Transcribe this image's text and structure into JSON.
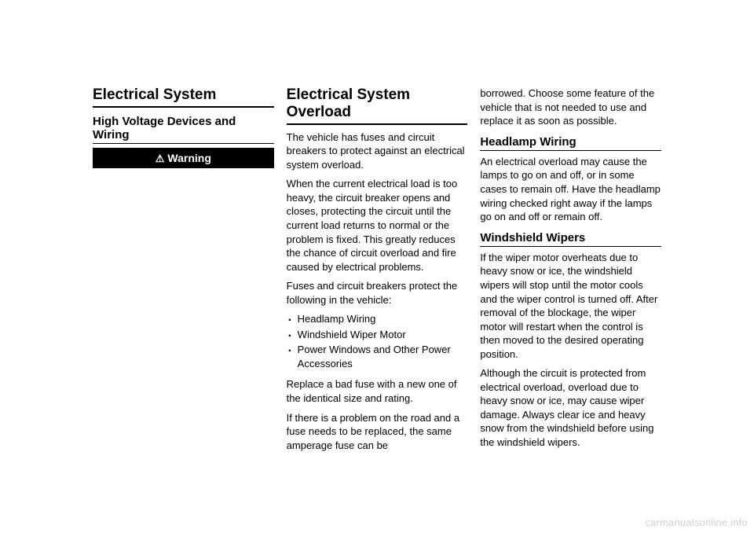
{
  "col1": {
    "heading": "Electrical System",
    "subheading": "High Voltage Devices and Wiring",
    "warning_label": "Warning"
  },
  "col2": {
    "heading": "Electrical System Overload",
    "p1": "The vehicle has fuses and circuit breakers to protect against an electrical system overload.",
    "p2": "When the current electrical load is too heavy, the circuit breaker opens and closes, protecting the circuit until the current load returns to normal or the problem is fixed. This greatly reduces the chance of circuit overload and fire caused by electrical problems.",
    "p3": "Fuses and circuit breakers protect the following in the vehicle:",
    "list": [
      "Headlamp Wiring",
      "Windshield Wiper Motor",
      "Power Windows and Other Power Accessories"
    ],
    "p4": "Replace a bad fuse with a new one of the identical size and rating.",
    "p5": "If there is a problem on the road and a fuse needs to be replaced, the same amperage fuse can be"
  },
  "col3": {
    "p1": "borrowed. Choose some feature of the vehicle that is not needed to use and replace it as soon as possible.",
    "h2a": "Headlamp Wiring",
    "p2": "An electrical overload may cause the lamps to go on and off, or in some cases to remain off. Have the headlamp wiring checked right away if the lamps go on and off or remain off.",
    "h2b": "Windshield Wipers",
    "p3": "If the wiper motor overheats due to heavy snow or ice, the windshield wipers will stop until the motor cools and the wiper control is turned off. After removal of the blockage, the wiper motor will restart when the control is then moved to the desired operating position.",
    "p4": "Although the circuit is protected from electrical overload, overload due to heavy snow or ice, may cause wiper damage. Always clear ice and heavy snow from the windshield before using the windshield wipers."
  },
  "watermark": "carmanualsonline.info"
}
